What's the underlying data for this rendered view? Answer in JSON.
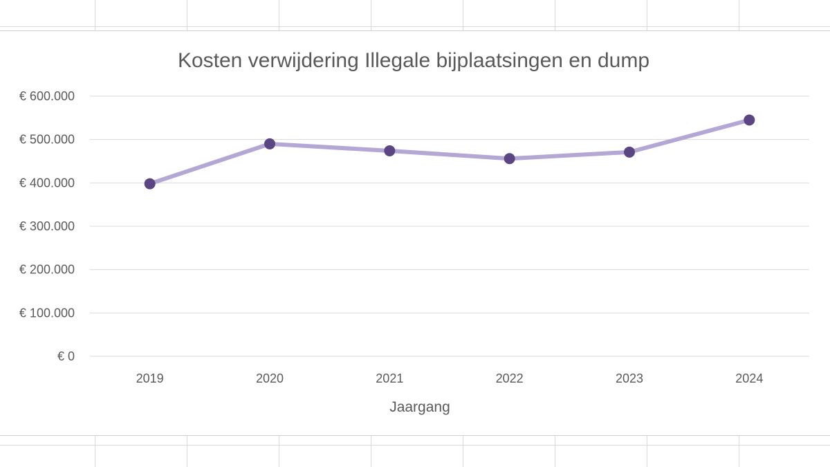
{
  "chart_data": {
    "type": "line",
    "title": "Kosten verwijdering Illegale bijplaatsingen en dump",
    "xlabel": "Jaargang",
    "ylabel": "",
    "categories": [
      "2019",
      "2020",
      "2021",
      "2022",
      "2023",
      "2024"
    ],
    "series": [
      {
        "values": [
          398000,
          490000,
          474000,
          456000,
          471000,
          545000
        ],
        "line_color": "#b4a7d6",
        "marker_color": "#5b4582"
      }
    ],
    "ylim": [
      0,
      600000
    ],
    "yticks": [
      0,
      100000,
      200000,
      300000,
      400000,
      500000,
      600000
    ],
    "ytick_labels": [
      "€ 0",
      "€ 100.000",
      "€ 200.000",
      "€ 300.000",
      "€ 400.000",
      "€ 500.000",
      "€ 600.000"
    ],
    "grid": true,
    "legend": "none"
  },
  "colors": {
    "gridline": "#d9d9d9",
    "text": "#595959",
    "line": "#b4a7d6",
    "marker": "#5b4582"
  }
}
